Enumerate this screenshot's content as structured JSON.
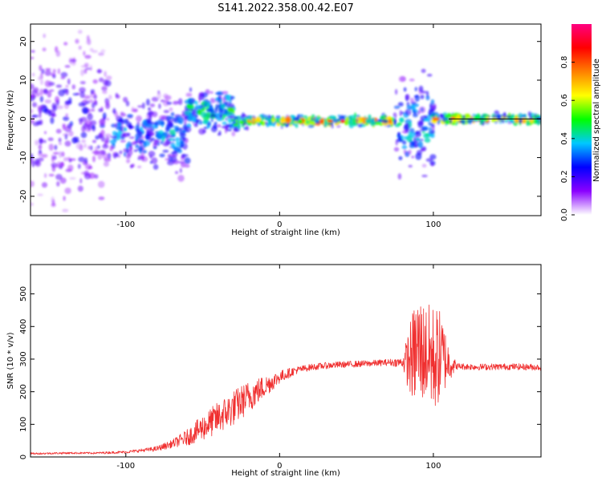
{
  "figure_title": "S141.2022.358.00.42.E07",
  "chart_data": [
    {
      "type": "heatmap",
      "xlabel": "Height of straight line (km)",
      "ylabel": "Frequency (Hz)",
      "xlim": [
        -162,
        170
      ],
      "ylim": [
        -25,
        24.5
      ],
      "xticks": [
        -100,
        0,
        100
      ],
      "yticks": [
        -20,
        -10,
        0,
        10,
        20
      ],
      "colorbar": {
        "label": "Normalized spectral amplitude",
        "range": [
          0,
          1
        ],
        "ticks": [
          0.0,
          0.2,
          0.4,
          0.6,
          0.8
        ],
        "tick_labels": [
          "0.0",
          "0.2",
          "0.4",
          "0.6",
          "0.8"
        ],
        "colors": [
          "#ffffff",
          "#8a00ff",
          "#0000ff",
          "#00c8ff",
          "#00ff00",
          "#ffff00",
          "#ff8000",
          "#ff0000",
          "#ff0080"
        ]
      },
      "bands": [
        {
          "x_start": -162,
          "x_end": -110,
          "center_freq": 0,
          "spread_hz": 24,
          "level": 0.22
        },
        {
          "x_start": -110,
          "x_end": -60,
          "center_freq": -4,
          "spread_hz": 10,
          "level": 0.35
        },
        {
          "x_start": -60,
          "x_end": -30,
          "center_freq": 2,
          "spread_hz": 6,
          "level": 0.45
        },
        {
          "x_start": -30,
          "x_end": -20,
          "center_freq": -1,
          "spread_hz": 2,
          "level": 0.5
        },
        {
          "x_start": -20,
          "x_end": 75,
          "center_freq": -0.5,
          "spread_hz": 1.2,
          "level": 0.72
        },
        {
          "x_start": 75,
          "x_end": 100,
          "center_freq": -2,
          "spread_hz": 12,
          "level": 0.4
        },
        {
          "x_start": 100,
          "x_end": 170,
          "center_freq": 0,
          "spread_hz": 1.2,
          "level": 0.68
        }
      ]
    },
    {
      "type": "line",
      "xlabel": "Height of straight line (km)",
      "ylabel": "SNR (10 * v/v)",
      "xlim": [
        -162,
        170
      ],
      "ylim": [
        0,
        590
      ],
      "xticks": [
        -100,
        0,
        100
      ],
      "yticks": [
        0,
        100,
        200,
        300,
        400,
        500
      ],
      "color": "#f03030",
      "series": [
        {
          "x": [
            -162,
            -140,
            -120,
            -100,
            -90,
            -80,
            -70,
            -60,
            -50,
            -40,
            -30,
            -20,
            -10,
            0,
            10,
            20,
            30,
            40,
            50,
            60,
            70,
            80,
            85,
            90,
            95,
            100,
            105,
            110,
            115,
            130,
            150,
            170
          ],
          "y": [
            10,
            12,
            12,
            15,
            20,
            25,
            40,
            60,
            90,
            120,
            150,
            185,
            215,
            245,
            265,
            275,
            280,
            283,
            285,
            287,
            290,
            290,
            300,
            330,
            320,
            300,
            310,
            290,
            278,
            276,
            277,
            275
          ],
          "noise_amp": [
            3,
            3,
            3,
            4,
            5,
            8,
            12,
            25,
            40,
            50,
            55,
            50,
            35,
            20,
            12,
            10,
            10,
            10,
            10,
            10,
            10,
            15,
            120,
            180,
            150,
            170,
            140,
            60,
            10,
            10,
            10,
            10
          ]
        }
      ]
    }
  ]
}
